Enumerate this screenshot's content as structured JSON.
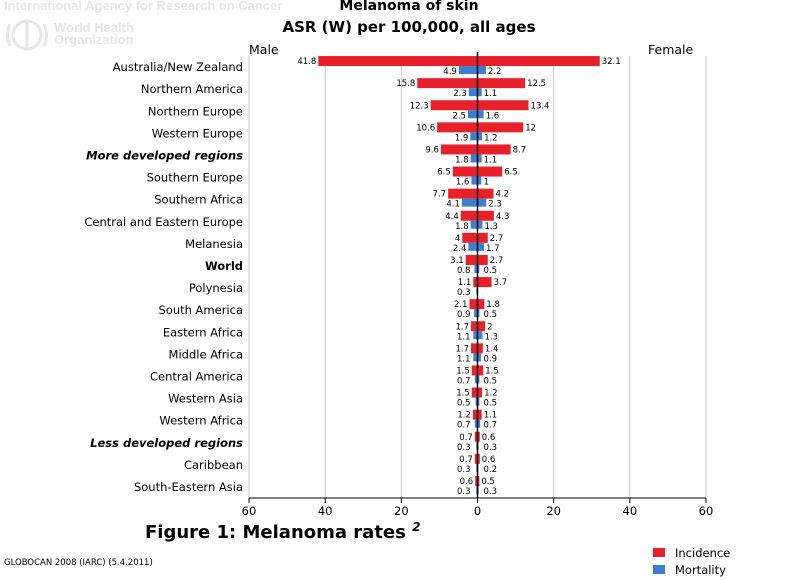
{
  "watermark": {
    "line1": "International Agency for Research on Cancer",
    "org_line1": "World Health",
    "org_line2": "Organization"
  },
  "caption": "Figure 1: Melanoma rates",
  "caption_sup": "2",
  "source": "GLOBOCAN 2008 (IARC) (5.4.2011)",
  "colors": {
    "incidence": "#e8202a",
    "mortality": "#3a7fd0",
    "grid": "#c8c8c8"
  },
  "chart_data": {
    "type": "bar",
    "orientation": "horizontal-butterfly",
    "title": "Melanoma of skin",
    "subtitle": "ASR (W) per 100,000, all ages",
    "left_label": "Male",
    "right_label": "Female",
    "xlim": [
      -60,
      60
    ],
    "xticks": [
      -60,
      -40,
      -20,
      0,
      20,
      40,
      60
    ],
    "xtick_labels": [
      "60",
      "40",
      "20",
      "0",
      "20",
      "40",
      "60"
    ],
    "grid": true,
    "legend_position": "bottom-right",
    "legend": [
      "Incidence",
      "Mortality"
    ],
    "categories": [
      {
        "label": "Australia/New Zealand",
        "style": "normal"
      },
      {
        "label": "Northern America",
        "style": "normal"
      },
      {
        "label": "Northern Europe",
        "style": "normal"
      },
      {
        "label": "Western Europe",
        "style": "normal"
      },
      {
        "label": "More developed regions",
        "style": "bold-italic"
      },
      {
        "label": "Southern Europe",
        "style": "normal"
      },
      {
        "label": "Southern Africa",
        "style": "normal"
      },
      {
        "label": "Central and Eastern Europe",
        "style": "normal"
      },
      {
        "label": "Melanesia",
        "style": "normal"
      },
      {
        "label": "World",
        "style": "bold"
      },
      {
        "label": "Polynesia",
        "style": "normal"
      },
      {
        "label": "South America",
        "style": "normal"
      },
      {
        "label": "Eastern Africa",
        "style": "normal"
      },
      {
        "label": "Middle Africa",
        "style": "normal"
      },
      {
        "label": "Central America",
        "style": "normal"
      },
      {
        "label": "Western Asia",
        "style": "normal"
      },
      {
        "label": "Western Africa",
        "style": "normal"
      },
      {
        "label": "Less developed regions",
        "style": "bold-italic"
      },
      {
        "label": "Caribbean",
        "style": "normal"
      },
      {
        "label": "South-Eastern Asia",
        "style": "normal"
      }
    ],
    "series": [
      {
        "name": "Incidence",
        "sex": "Male",
        "values": [
          41.8,
          15.8,
          12.3,
          10.6,
          9.6,
          6.5,
          7.7,
          4.4,
          4,
          3.1,
          1.1,
          2.1,
          1.7,
          1.7,
          1.5,
          1.5,
          1.2,
          0.7,
          0.7,
          0.6
        ],
        "labels": [
          "41.8",
          "15.8",
          "12.3",
          "10.6",
          "9.6",
          "6.5",
          "7.7",
          "4.4",
          "4",
          "3.1",
          "1.1",
          "2.1",
          "1.7",
          "1.7",
          "1.5",
          "1.5",
          "1.2",
          "0.7",
          "0.7",
          "0.6"
        ]
      },
      {
        "name": "Incidence",
        "sex": "Female",
        "values": [
          32.1,
          12.5,
          13.4,
          12,
          8.7,
          6.5,
          4.2,
          4.3,
          2.7,
          2.7,
          3.7,
          1.8,
          2,
          1.4,
          1.5,
          1.2,
          1.1,
          0.6,
          0.6,
          0.5
        ],
        "labels": [
          "32.1",
          "12.5",
          "13.4",
          "12",
          "8.7",
          "6.5",
          "4.2",
          "4.3",
          "2.7",
          "2.7",
          "3.7",
          "1.8",
          "2",
          "1.4",
          "1.5",
          "1.2",
          "1.1",
          "0.6",
          "0.6",
          "0.5"
        ]
      },
      {
        "name": "Mortality",
        "sex": "Male",
        "values": [
          4.9,
          2.3,
          2.5,
          1.9,
          1.8,
          1.6,
          4.1,
          1.8,
          2.4,
          0.8,
          0.3,
          0.9,
          1.1,
          1.1,
          0.7,
          0.5,
          0.7,
          0.3,
          0.3,
          0.3
        ],
        "labels": [
          "4.9",
          "2.3",
          "2.5",
          "1.9",
          "1.8",
          "1.6",
          "4.1",
          "1.8",
          "2.4",
          "0.8",
          "0.3",
          "0.9",
          "1.1",
          "1.1",
          "0.7",
          "0.5",
          "0.7",
          "0.3",
          "0.3",
          "0.3"
        ]
      },
      {
        "name": "Mortality",
        "sex": "Female",
        "values": [
          2.2,
          1.1,
          1.6,
          1.2,
          1.1,
          1,
          2.3,
          1.3,
          1.7,
          0.5,
          0,
          0.5,
          1.3,
          0.9,
          0.5,
          0.5,
          0.7,
          0.3,
          0.2,
          0.3
        ],
        "labels": [
          "2.2",
          "1.1",
          "1.6",
          "1.2",
          "1.1",
          "1",
          "2.3",
          "1.3",
          "1.7",
          "0.5",
          "",
          "0.5",
          "1.3",
          "0.9",
          "0.5",
          "0.5",
          "0.7",
          "0.3",
          "0.2",
          "0.3"
        ]
      }
    ]
  }
}
